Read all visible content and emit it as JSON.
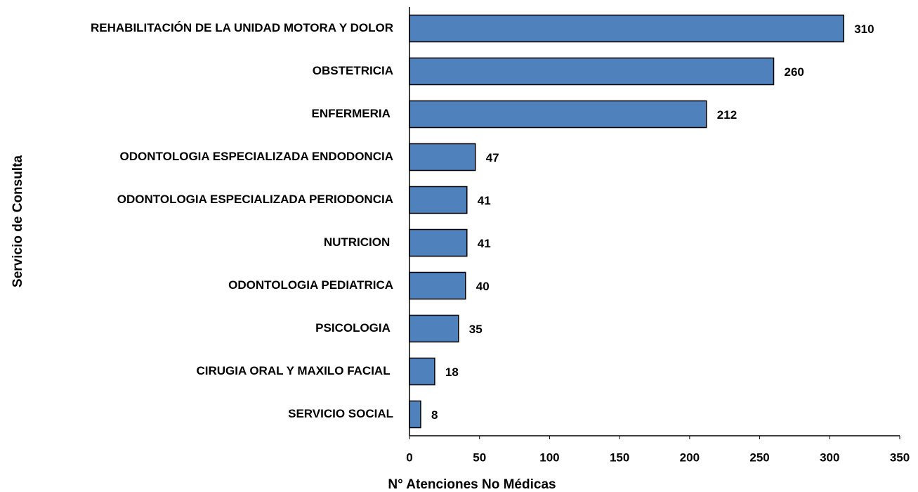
{
  "chart_data": {
    "type": "barh",
    "categories": [
      "REHABILITACIÓN DE LA UNIDAD MOTORA Y DOLOR",
      "OBSTETRICIA",
      "ENFERMERIA ",
      "ODONTOLOGIA ESPECIALIZADA ENDODONCIA",
      "ODONTOLOGIA ESPECIALIZADA PERIODONCIA",
      "NUTRICION ",
      "ODONTOLOGIA PEDIATRICA",
      "PSICOLOGIA ",
      "CIRUGIA ORAL Y MAXILO FACIAL ",
      "SERVICIO SOCIAL"
    ],
    "values": [
      310,
      260,
      212,
      47,
      41,
      41,
      40,
      35,
      18,
      8
    ],
    "color": "#4f81bd",
    "xlim": [
      0,
      350
    ],
    "xticks": [
      0,
      50,
      100,
      150,
      200,
      250,
      300,
      350
    ],
    "xlabel": "N° Atenciones No Médicas",
    "ylabel": "Servicio de Consulta",
    "grid": false
  }
}
